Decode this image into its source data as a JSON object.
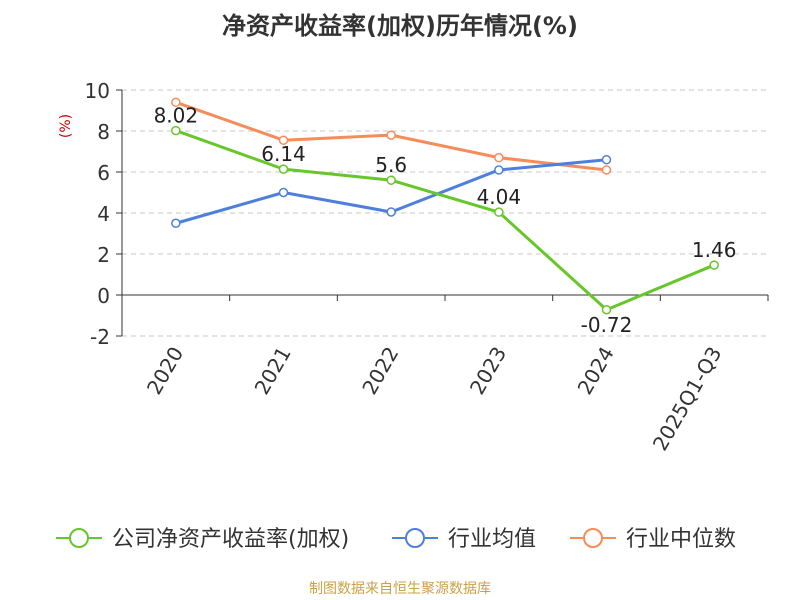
{
  "chart_data": {
    "type": "line",
    "title": "净资产收益率(加权)历年情况(%)",
    "ylabel": "(%)",
    "xlabel": "",
    "categories": [
      "2020",
      "2021",
      "2022",
      "2023",
      "2024",
      "2025Q1-Q3"
    ],
    "ylim": [
      -2,
      10
    ],
    "yticks": [
      -2,
      0,
      2,
      4,
      6,
      8,
      10
    ],
    "grid": true,
    "legend_position": "bottom",
    "series": [
      {
        "name": "公司净资产收益率(加权)",
        "color": "#66c62a",
        "values": [
          8.02,
          6.14,
          5.6,
          4.04,
          -0.72,
          1.46
        ],
        "labels": [
          "8.02",
          "6.14",
          "5.6",
          "4.04",
          "-0.72",
          "1.46"
        ]
      },
      {
        "name": "行业均值",
        "color": "#4e7fdc",
        "values": [
          3.5,
          5.0,
          4.05,
          6.1,
          6.6,
          null
        ]
      },
      {
        "name": "行业中位数",
        "color": "#f58c5a",
        "values": [
          9.4,
          7.55,
          7.8,
          6.7,
          6.1,
          null
        ]
      }
    ]
  },
  "source": "制图数据来自恒生聚源数据库"
}
